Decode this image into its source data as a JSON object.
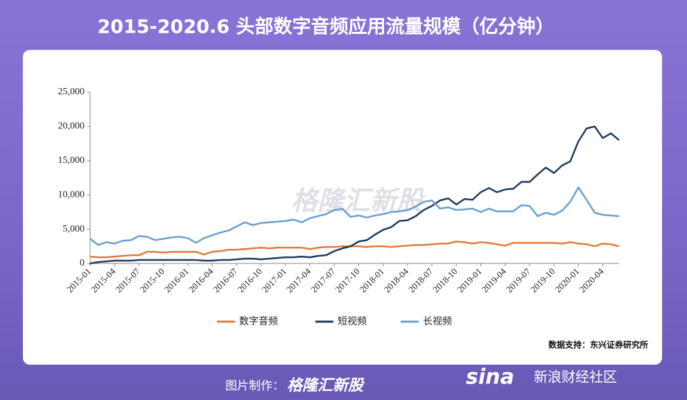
{
  "title": "2015-2020.6 头部数字音频应用流量规模（亿分钟）",
  "watermark": "格隆汇新股",
  "credit": {
    "label": "图片制作：",
    "brand": "格隆汇新股"
  },
  "sina": {
    "logo": "sina",
    "text": "新浪财经社区"
  },
  "chart_data": {
    "type": "line",
    "source": "数据支持：东兴证券研究所",
    "categories": [
      "2015-01",
      null,
      null,
      "2015-04",
      null,
      null,
      "2015-07",
      null,
      null,
      "2015-10",
      null,
      null,
      "2016-01",
      null,
      null,
      "2016-04",
      null,
      null,
      "2016-07",
      null,
      null,
      "2016-10",
      null,
      null,
      "2017-01",
      null,
      null,
      "2017-04",
      null,
      null,
      "2017-07",
      null,
      null,
      "2017-10",
      null,
      null,
      "2018-01",
      null,
      null,
      "2018-04",
      null,
      null,
      "2018-07",
      null,
      null,
      "2018-10",
      null,
      null,
      "2019-01",
      null,
      null,
      "2019-04",
      null,
      null,
      "2019-07",
      null,
      null,
      "2019-10",
      null,
      null,
      "2020-01",
      null,
      null,
      "2020-04",
      null,
      null
    ],
    "series": [
      {
        "name": "数字音频",
        "color": "#e07b39",
        "values": [
          1000,
          900,
          900,
          1000,
          1100,
          1200,
          1200,
          1700,
          1700,
          1600,
          1700,
          1700,
          1700,
          1700,
          1300,
          1700,
          1800,
          2000,
          2000,
          2100,
          2200,
          2300,
          2200,
          2300,
          2300,
          2300,
          2300,
          2100,
          2300,
          2400,
          2400,
          2500,
          2500,
          2500,
          2400,
          2500,
          2500,
          2400,
          2500,
          2600,
          2700,
          2700,
          2800,
          2900,
          2900,
          3200,
          3100,
          2900,
          3100,
          3000,
          2800,
          2600,
          3000,
          3000,
          3000,
          3000,
          3000,
          3000,
          2900,
          3100,
          2900,
          2800,
          2500,
          2900,
          2800,
          2500
        ]
      },
      {
        "name": "短视频",
        "color": "#1f3a5f",
        "values": [
          0,
          200,
          300,
          400,
          400,
          400,
          500,
          500,
          500,
          500,
          500,
          500,
          500,
          500,
          400,
          400,
          500,
          500,
          600,
          700,
          700,
          600,
          700,
          800,
          900,
          900,
          1000,
          900,
          1100,
          1200,
          1800,
          2200,
          2500,
          3200,
          3400,
          4200,
          4900,
          5300,
          6200,
          6300,
          6900,
          7800,
          8400,
          9200,
          9500,
          8600,
          9400,
          9300,
          10400,
          11000,
          10400,
          10800,
          10900,
          11900,
          11900,
          13000,
          14000,
          13200,
          14300,
          14900,
          17800,
          19700,
          20000,
          18300,
          19000,
          18000
        ]
      },
      {
        "name": "长视频",
        "color": "#6a9fcf",
        "values": [
          3600,
          2700,
          3100,
          2900,
          3300,
          3400,
          4000,
          3900,
          3400,
          3600,
          3800,
          3900,
          3700,
          3000,
          3700,
          4100,
          4500,
          4800,
          5400,
          6000,
          5600,
          5900,
          6000,
          6100,
          6200,
          6400,
          6000,
          6600,
          6900,
          7200,
          7800,
          8000,
          6800,
          7000,
          6700,
          7000,
          7200,
          7500,
          7600,
          7800,
          8300,
          9000,
          9200,
          8000,
          8200,
          7800,
          7900,
          8000,
          7500,
          8000,
          7600,
          7600,
          7600,
          8500,
          8400,
          6900,
          7400,
          7100,
          7700,
          9000,
          11100,
          9300,
          7400,
          7100,
          7000,
          6900
        ]
      }
    ],
    "ylim": [
      0,
      25000
    ],
    "yticks": [
      0,
      {
        "value": 5000,
        "label": "5,000"
      },
      {
        "value": 10000,
        "label": "10,000"
      },
      {
        "value": 15000,
        "label": "15,000"
      },
      {
        "value": 20000,
        "label": "20,000"
      },
      {
        "value": 25000,
        "label": "25,000"
      }
    ],
    "grid": false,
    "legend": "bottom"
  }
}
